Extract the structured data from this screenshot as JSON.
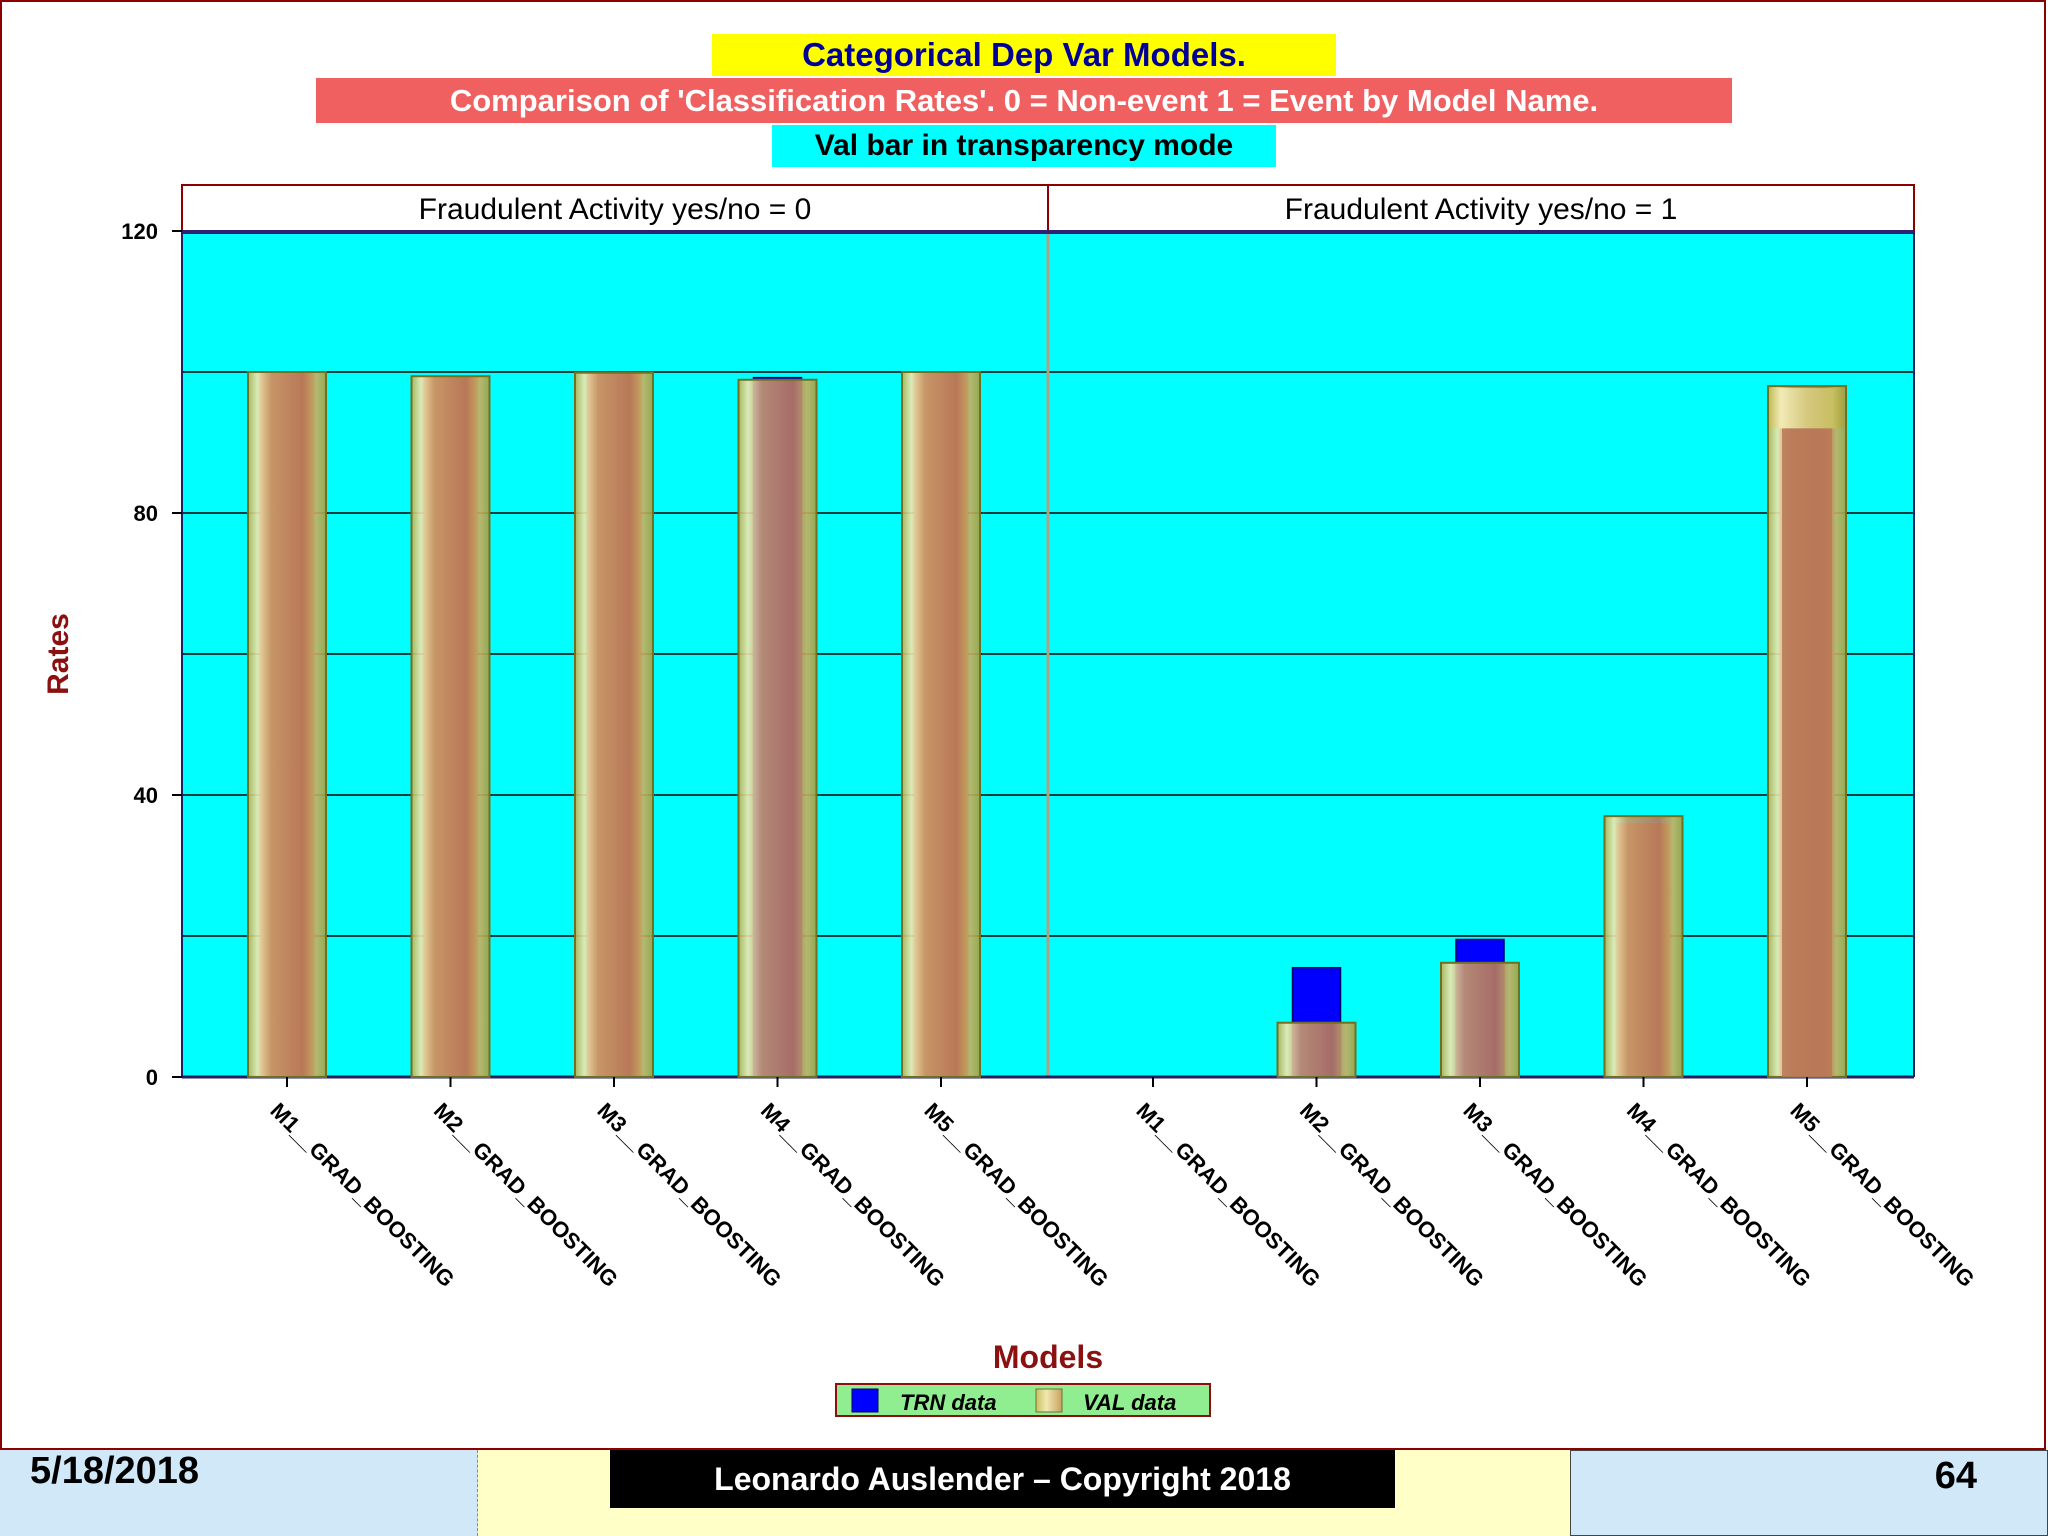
{
  "chart_data": {
    "type": "bar",
    "title": "Categorical Dep Var Models.",
    "subtitle": "Comparison of 'Classification Rates'. 0 = Non-event 1 = Event by Model Name.",
    "subtitle2": "Val bar in transparency mode",
    "xlabel": "Models",
    "ylabel": "Rates",
    "ylim": [
      0,
      120
    ],
    "yticks": [
      0,
      40,
      80,
      120
    ],
    "grid": true,
    "categories": [
      "M1__GRAD_BOOSTING",
      "M2__GRAD_BOOSTING",
      "M3__GRAD_BOOSTING",
      "M4__GRAD_BOOSTING",
      "M5__GRAD_BOOSTING"
    ],
    "panels": [
      {
        "label": "Fraudulent Activity yes/no = 0",
        "series": [
          {
            "name": "TRN data",
            "values": [
              100,
              99.3,
              99.8,
              99.2,
              100
            ]
          },
          {
            "name": "VAL data",
            "values": [
              100,
              99.4,
              99.9,
              98.9,
              100
            ]
          }
        ]
      },
      {
        "label": "Fraudulent Activity yes/no = 1",
        "series": [
          {
            "name": "TRN data",
            "values": [
              0,
              15.5,
              19.5,
              36,
              92
            ]
          },
          {
            "name": "VAL data",
            "values": [
              0,
              7.7,
              16.2,
              37,
              98
            ]
          }
        ]
      }
    ],
    "legend": {
      "position": "bottom",
      "items": [
        "TRN data",
        "VAL data"
      ]
    },
    "colors": {
      "plot_bg": "#00ffff",
      "trn": "#0000ff",
      "val_fill": "#c89060",
      "val_edge": "#c8c860",
      "title_bg": "#ffff00",
      "subtitle_bg": "#f06060",
      "subtitle2_bg": "#00ffff"
    }
  },
  "footer": {
    "date": "5/18/2018",
    "copyright": "Leonardo Auslender – Copyright 2018",
    "page": "64"
  }
}
